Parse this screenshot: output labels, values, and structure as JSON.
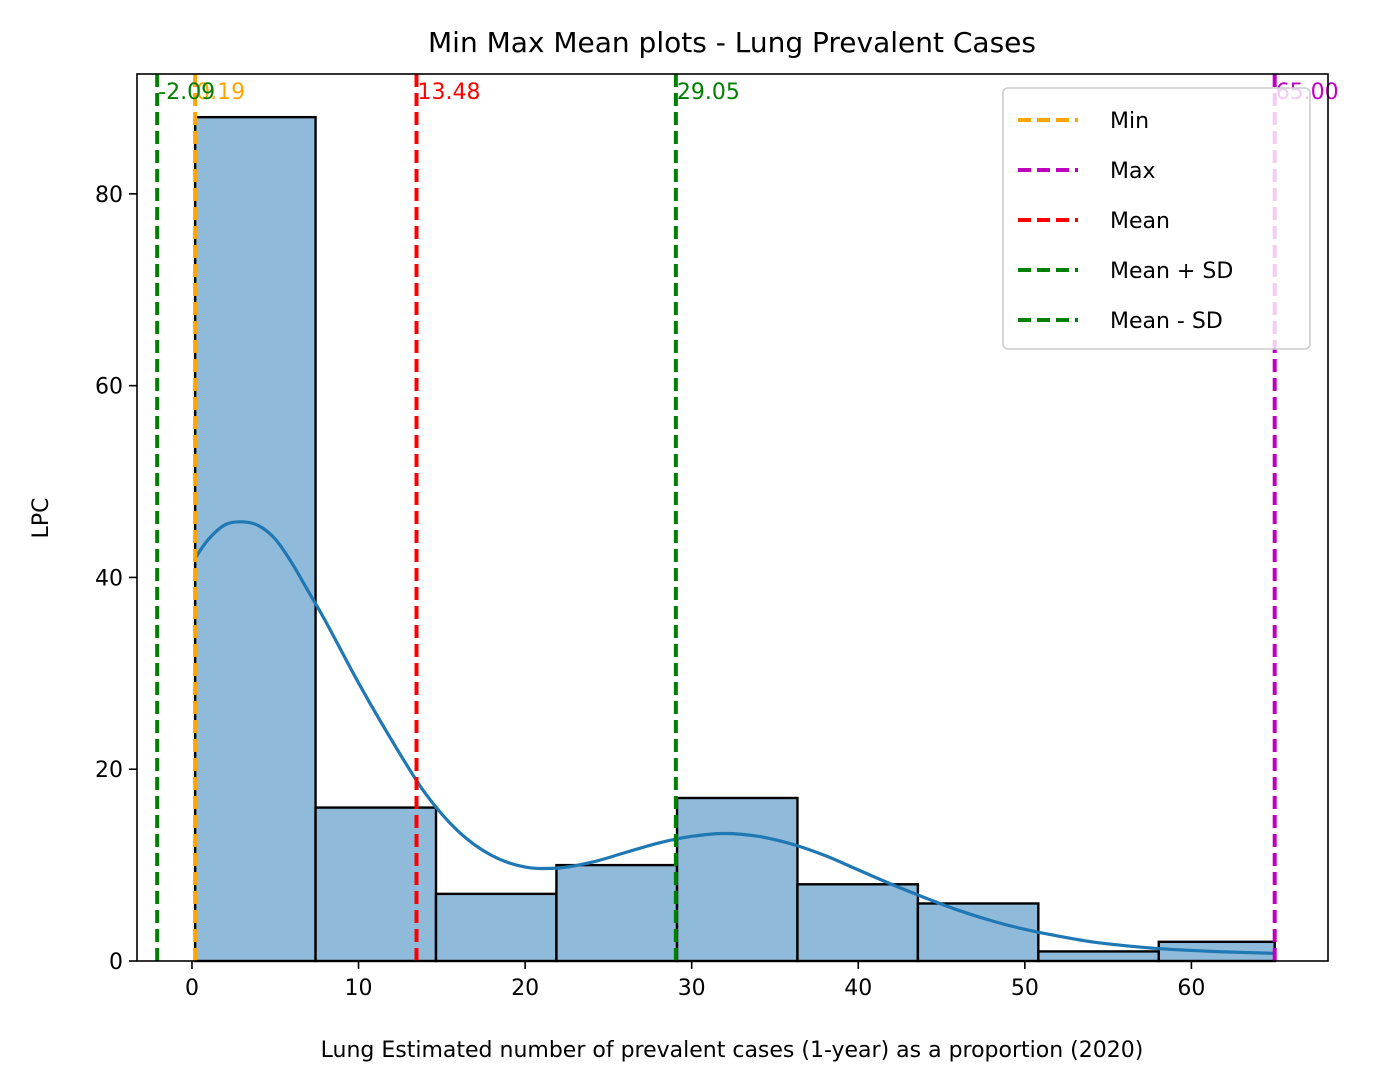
{
  "chart_data": {
    "type": "bar",
    "title": "Min Max Mean plots - Lung Prevalent Cases",
    "xlabel": "Lung Estimated number of prevalent cases (1-year) as a proportion (2020)",
    "ylabel": "LPC",
    "xlim": [
      -3.3,
      68.2
    ],
    "ylim": [
      0,
      92.5
    ],
    "x_ticks": [
      0,
      10,
      20,
      30,
      40,
      50,
      60
    ],
    "y_ticks": [
      0,
      20,
      40,
      60,
      80
    ],
    "bins": [
      {
        "x0": 0.19,
        "x1": 7.42,
        "count": 88
      },
      {
        "x0": 7.42,
        "x1": 14.65,
        "count": 16
      },
      {
        "x0": 14.65,
        "x1": 21.88,
        "count": 7
      },
      {
        "x0": 21.88,
        "x1": 29.12,
        "count": 10
      },
      {
        "x0": 29.12,
        "x1": 36.35,
        "count": 17
      },
      {
        "x0": 36.35,
        "x1": 43.58,
        "count": 8
      },
      {
        "x0": 43.58,
        "x1": 50.81,
        "count": 6
      },
      {
        "x0": 50.81,
        "x1": 58.04,
        "count": 1
      },
      {
        "x0": 58.04,
        "x1": 65.0,
        "count": 2
      }
    ],
    "kde": {
      "x": [
        0.19,
        1,
        2,
        3,
        4,
        5,
        6,
        7,
        8,
        10,
        12,
        14,
        16,
        18,
        20,
        22,
        24,
        26,
        28,
        30,
        32,
        34,
        36,
        38,
        40,
        42,
        44,
        46,
        48,
        50,
        52,
        54,
        56,
        58,
        60,
        62,
        65
      ],
      "y": [
        42,
        44,
        45.5,
        45.8,
        45.4,
        44,
        41.5,
        38.5,
        35.5,
        29,
        23,
        17.5,
        13.5,
        11,
        9.8,
        9.7,
        10.3,
        11.3,
        12.3,
        13,
        13.3,
        13,
        12.2,
        11,
        9.5,
        8,
        6.6,
        5.3,
        4.2,
        3.3,
        2.6,
        2,
        1.6,
        1.3,
        1.1,
        0.95,
        0.8
      ]
    },
    "vlines": [
      {
        "name": "Min",
        "value": 0.19,
        "label": "0.19",
        "color": "#ffa500"
      },
      {
        "name": "Max",
        "value": 65.0,
        "label": "65.00",
        "color": "#bf00bf"
      },
      {
        "name": "Mean",
        "value": 13.48,
        "label": "13.48",
        "color": "#ff0000"
      },
      {
        "name": "Mean + SD",
        "value": 29.05,
        "label": "29.05",
        "color": "#008000"
      },
      {
        "name": "Mean - SD",
        "value": -2.09,
        "label": "-2.09",
        "color": "#008000"
      }
    ],
    "legend_position": "top-right",
    "colors": {
      "bar_fill": "#8fbad9",
      "bar_edge": "#000000",
      "kde": "#1f77b4"
    }
  }
}
